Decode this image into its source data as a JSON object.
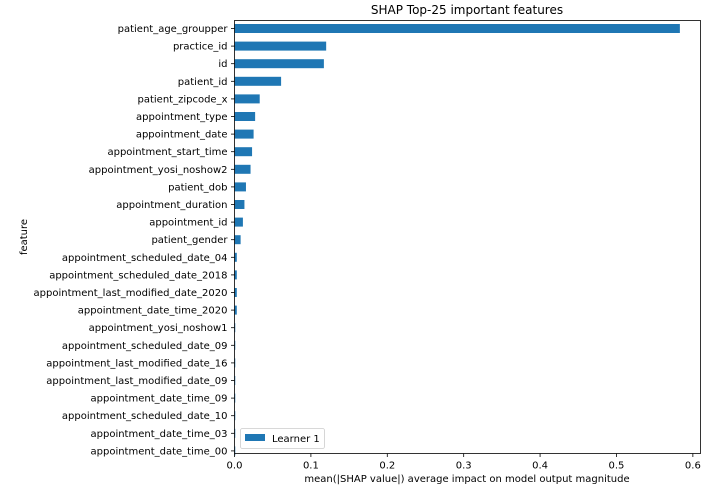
{
  "chart_data": {
    "type": "bar",
    "orientation": "horizontal",
    "title": "SHAP Top-25 important features",
    "xlabel": "mean(|SHAP value|) average impact on model output magnitude",
    "ylabel": "feature",
    "xlim": [
      0,
      0.61
    ],
    "xticks": [
      0,
      0.1,
      0.2,
      0.3,
      0.4,
      0.5,
      0.6
    ],
    "xtick_labels": [
      "0.0",
      "0.1",
      "0.2",
      "0.3",
      "0.4",
      "0.5",
      "0.6"
    ],
    "grid": false,
    "legend_position": "lower-left",
    "color": "#1f77b4",
    "categories": [
      "patient_age_groupper",
      "practice_id",
      "id",
      "patient_id",
      "patient_zipcode_x",
      "appointment_type",
      "appointment_date",
      "appointment_start_time",
      "appointment_yosi_noshow2",
      "patient_dob",
      "appointment_duration",
      "appointment_id",
      "patient_gender",
      "appointment_scheduled_date_04",
      "appointment_scheduled_date_2018",
      "appointment_last_modified_date_2020",
      "appointment_date_time_2020",
      "appointment_yosi_noshow1",
      "appointment_scheduled_date_09",
      "appointment_last_modified_date_16",
      "appointment_last_modified_date_09",
      "appointment_date_time_09",
      "appointment_scheduled_date_10",
      "appointment_date_time_03",
      "appointment_date_time_00"
    ],
    "series": [
      {
        "name": "Learner 1",
        "values": [
          0.583,
          0.12,
          0.117,
          0.061,
          0.033,
          0.027,
          0.025,
          0.023,
          0.021,
          0.015,
          0.013,
          0.011,
          0.008,
          0.003,
          0.003,
          0.003,
          0.003,
          0.001,
          0.001,
          0.001,
          0.001,
          0.001,
          0.001,
          0.001,
          0.001
        ]
      }
    ]
  }
}
